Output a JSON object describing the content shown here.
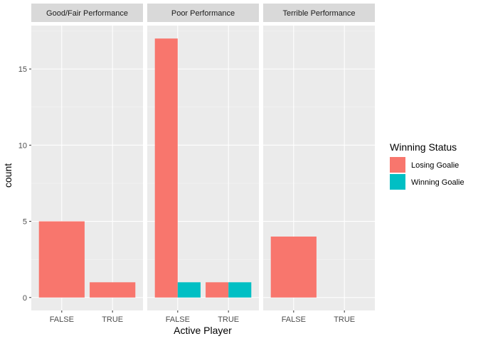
{
  "chart_data": {
    "type": "bar",
    "facet_variable": "Performance",
    "panels": [
      {
        "title": "Good/Fair Performance",
        "categories": [
          "FALSE",
          "TRUE"
        ],
        "series": [
          {
            "name": "Losing Goalie",
            "values": [
              5,
              1
            ]
          },
          {
            "name": "Winning Goalie",
            "values": [
              0,
              0
            ]
          }
        ]
      },
      {
        "title": "Poor Performance",
        "categories": [
          "FALSE",
          "TRUE"
        ],
        "series": [
          {
            "name": "Losing Goalie",
            "values": [
              17,
              1
            ]
          },
          {
            "name": "Winning Goalie",
            "values": [
              1,
              1
            ]
          }
        ]
      },
      {
        "title": "Terrible Performance",
        "categories": [
          "FALSE",
          "TRUE"
        ],
        "series": [
          {
            "name": "Losing Goalie",
            "values": [
              4,
              0
            ]
          },
          {
            "name": "Winning Goalie",
            "values": [
              0,
              0
            ]
          }
        ]
      }
    ],
    "xlabel": "Active Player",
    "ylabel": "count",
    "ylim": [
      -0.85,
      17.85
    ],
    "yticks": [
      0,
      5,
      10,
      15
    ],
    "grid": true,
    "legend": {
      "title": "Winning Status",
      "position": "right",
      "entries": [
        "Losing Goalie",
        "Winning Goalie"
      ]
    },
    "colors": {
      "Losing Goalie": "#F8766D",
      "Winning Goalie": "#00BFC4",
      "panel_background": "#EBEBEB",
      "strip_background": "#D9D9D9",
      "grid_major": "#FFFFFF",
      "grid_minor": "#F5F5F5",
      "tick_text": "#4D4D4D"
    }
  }
}
